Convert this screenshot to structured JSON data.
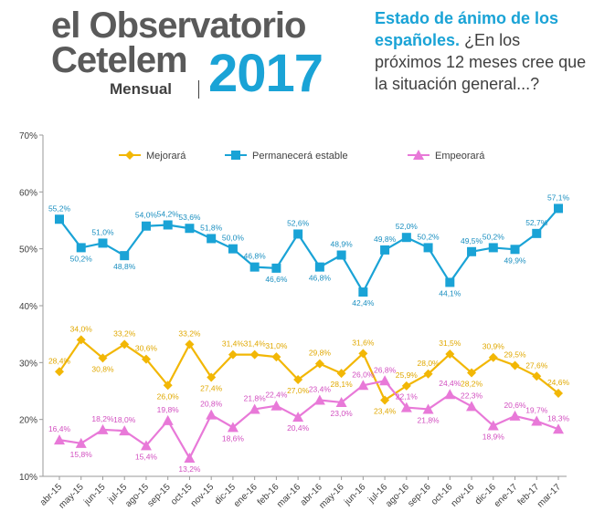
{
  "header": {
    "logo_line1": "el Observatorio",
    "logo_line2": "Cetelem",
    "logo_sub": "Mensual",
    "logo_year": "2017",
    "question_highlight": "Estado de ánimo de los españoles.",
    "question_rest": "¿En los próximos 12 meses cree que la situación general...?"
  },
  "chart_data": {
    "type": "line",
    "title": "",
    "xlabel": "",
    "ylabel": "",
    "ylim": [
      10,
      70
    ],
    "yticks": [
      "10%",
      "20%",
      "30%",
      "40%",
      "50%",
      "60%",
      "70%"
    ],
    "grid": false,
    "legend_position": "top",
    "categories": [
      "abr-15",
      "may-15",
      "jun-15",
      "jul-15",
      "ago-15",
      "sep-15",
      "oct-15",
      "nov-15",
      "dic-15",
      "ene-16",
      "feb-16",
      "mar-16",
      "abr-16",
      "may-16",
      "jun-16",
      "jul-16",
      "ago-16",
      "sep-16",
      "oct-16",
      "nov-16",
      "dic-16",
      "ene-17",
      "feb-17",
      "mar-17"
    ],
    "series": [
      {
        "name": "Mejorará",
        "color": "#f2b705",
        "label_color": "#e0a800",
        "marker": "diamond",
        "values": [
          28.4,
          34.0,
          30.8,
          33.2,
          30.6,
          26.0,
          33.2,
          27.4,
          31.4,
          31.4,
          31.0,
          27.0,
          29.8,
          28.1,
          31.6,
          23.4,
          25.9,
          28.0,
          31.5,
          28.2,
          30.9,
          29.5,
          27.6,
          24.6
        ],
        "labels": [
          "28,4%",
          "34,0%",
          "30,8%",
          "33,2%",
          "30,6%",
          "26,0%",
          "33,2%",
          "27,4%",
          "31,4%",
          "31,4%",
          "31,0%",
          "27,0%",
          "29,8%",
          "28,1%",
          "31,6%",
          "23,4%",
          "25,9%",
          "28,0%",
          "31,5%",
          "28,2%",
          "30,9%",
          "29,5%",
          "27,6%",
          "24,6%"
        ]
      },
      {
        "name": "Permanecerá estable",
        "color": "#1aa3d6",
        "label_color": "#1a8fc0",
        "marker": "square",
        "values": [
          55.2,
          50.2,
          51.0,
          48.8,
          54.0,
          54.2,
          53.6,
          51.8,
          50.0,
          46.8,
          46.6,
          52.6,
          46.8,
          48.9,
          42.4,
          49.8,
          52.0,
          50.2,
          44.1,
          49.5,
          50.2,
          49.9,
          52.7,
          57.1
        ],
        "labels": [
          "55,2%",
          "50,2%",
          "51,0%",
          "48,8%",
          "54,0%",
          "54,2%",
          "53,6%",
          "51,8%",
          "50,0%",
          "46,8%",
          "46,6%",
          "52,6%",
          "46,8%",
          "48,9%",
          "42,4%",
          "49,8%",
          "52,0%",
          "50,2%",
          "44,1%",
          "49,5%",
          "50,2%",
          "49,9%",
          "52,7%",
          "57,1%"
        ]
      },
      {
        "name": "Empeorará",
        "color": "#e879d8",
        "label_color": "#d24fc0",
        "marker": "triangle",
        "values": [
          16.4,
          15.8,
          18.2,
          18.0,
          15.4,
          19.8,
          13.2,
          20.8,
          18.6,
          21.8,
          22.4,
          20.4,
          23.4,
          23.0,
          26.0,
          26.8,
          22.1,
          21.8,
          24.4,
          22.3,
          18.9,
          20.6,
          19.7,
          18.3
        ],
        "labels": [
          "16,4%",
          "15,8%",
          "18,2%",
          "18,0%",
          "15,4%",
          "19,8%",
          "13,2%",
          "20,8%",
          "18,6%",
          "21,8%",
          "22,4%",
          "20,4%",
          "23,4%",
          "23,0%",
          "26,0%",
          "26,8%",
          "22,1%",
          "21,8%",
          "24,4%",
          "22,3%",
          "18,9%",
          "20,6%",
          "19,7%",
          "18,3%"
        ]
      }
    ]
  }
}
